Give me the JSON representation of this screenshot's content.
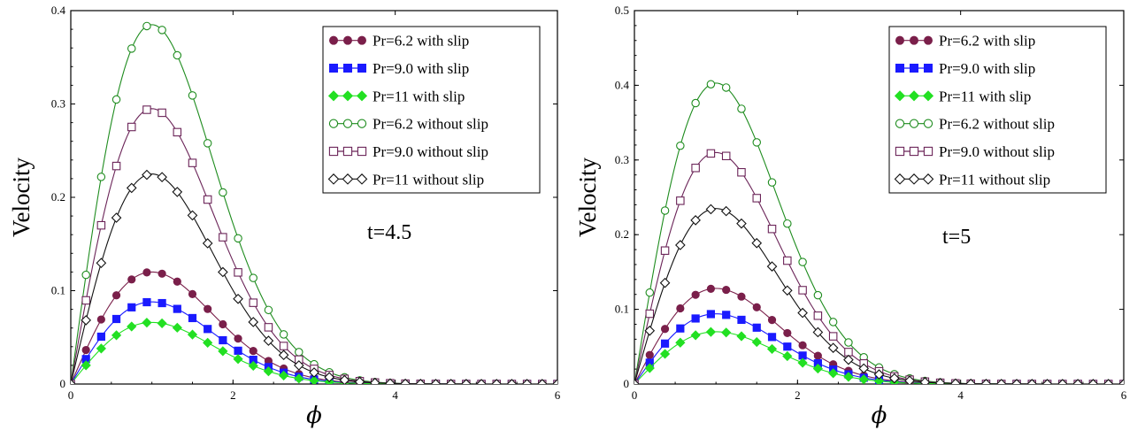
{
  "chart_data": [
    {
      "type": "line",
      "panel": "left",
      "xlabel": "ϕ",
      "ylabel": "Velocity",
      "annotation": "t=4.5",
      "xlim": [
        0,
        6
      ],
      "ylim": [
        0,
        0.4
      ],
      "xticks": [
        0,
        2,
        4,
        6
      ],
      "xtick_labels": [
        "0",
        "2",
        "4",
        "6"
      ],
      "yticks": [
        0,
        0.1,
        0.2,
        0.3,
        0.4
      ],
      "ytick_labels": [
        "0",
        "0.1",
        "0.2",
        "0.3",
        "0.4"
      ],
      "legend_position": "top-right",
      "series": [
        {
          "name": "Pr=6.2 with slip",
          "color": "#7a1f4a",
          "marker": "circle",
          "filled": true,
          "peak": 0.12
        },
        {
          "name": "Pr=9.0 with slip",
          "color": "#1a1aff",
          "marker": "square",
          "filled": true,
          "peak": 0.088
        },
        {
          "name": "Pr=11 with slip",
          "color": "#22e022",
          "marker": "diamond",
          "filled": true,
          "peak": 0.066
        },
        {
          "name": "Pr=6.2 without slip",
          "color": "#1e8c1e",
          "marker": "circle",
          "filled": false,
          "peak": 0.385
        },
        {
          "name": "Pr=9.0 without slip",
          "color": "#6b2458",
          "marker": "square",
          "filled": false,
          "peak": 0.295
        },
        {
          "name": "Pr=11 without slip",
          "color": "#111111",
          "marker": "diamond",
          "filled": false,
          "peak": 0.225
        }
      ]
    },
    {
      "type": "line",
      "panel": "right",
      "xlabel": "ϕ",
      "ylabel": "Velocity",
      "annotation": "t=5",
      "xlim": [
        0,
        6
      ],
      "ylim": [
        0,
        0.5
      ],
      "xticks": [
        0,
        2,
        4,
        6
      ],
      "xtick_labels": [
        "0",
        "2",
        "4",
        "6"
      ],
      "yticks": [
        0,
        0.1,
        0.2,
        0.3,
        0.4,
        0.5
      ],
      "ytick_labels": [
        "0",
        "0.1",
        "0.2",
        "0.3",
        "0.4",
        "0.5"
      ],
      "legend_position": "top-right",
      "series": [
        {
          "name": "Pr=6.2 with slip",
          "color": "#7a1f4a",
          "marker": "circle",
          "filled": true,
          "peak": 0.128
        },
        {
          "name": "Pr=9.0 with slip",
          "color": "#1a1aff",
          "marker": "square",
          "filled": true,
          "peak": 0.094
        },
        {
          "name": "Pr=11 with slip",
          "color": "#22e022",
          "marker": "diamond",
          "filled": true,
          "peak": 0.07
        },
        {
          "name": "Pr=6.2 without slip",
          "color": "#1e8c1e",
          "marker": "circle",
          "filled": false,
          "peak": 0.403
        },
        {
          "name": "Pr=9.0 without slip",
          "color": "#6b2458",
          "marker": "square",
          "filled": false,
          "peak": 0.31
        },
        {
          "name": "Pr=11 without slip",
          "color": "#111111",
          "marker": "diamond",
          "filled": false,
          "peak": 0.235
        }
      ]
    }
  ]
}
